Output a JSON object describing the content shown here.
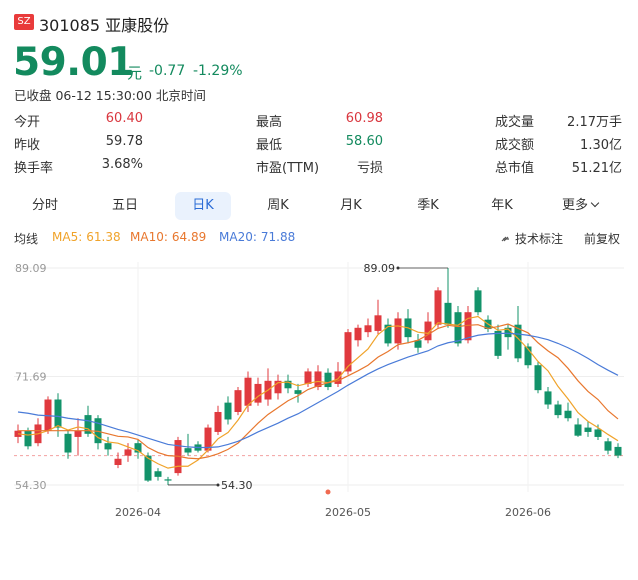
{
  "header": {
    "badge": "SZ",
    "code_name": "301085 亚康股份",
    "price": 59.01,
    "unit": "元",
    "change": "-0.77",
    "change_pct": "-1.29%",
    "status": "已收盘 06-12 15:30:00 北京时间"
  },
  "stats": [
    [
      {
        "label": "今开",
        "value": "60.40",
        "color": "#d9363e"
      },
      {
        "label": "昨收",
        "value": "59.78"
      },
      {
        "label": "换手率",
        "value": "3.68%"
      }
    ],
    [
      {
        "label": "最高",
        "value": "60.98",
        "color": "#d9363e"
      },
      {
        "label": "最低",
        "value": "58.60",
        "color": "#138a5e"
      },
      {
        "label": "市盈(TTM)",
        "value": "亏损"
      }
    ],
    [
      {
        "label": "成交量",
        "value": "2.17万手"
      },
      {
        "label": "成交额",
        "value": "1.30亿"
      },
      {
        "label": "总市值",
        "value": "51.21亿"
      }
    ]
  ],
  "tabs": [
    "分时",
    "五日",
    "日K",
    "周K",
    "月K",
    "季K",
    "年K",
    "更多"
  ],
  "selected_tab": 2,
  "legend_title": "均线",
  "tools": [
    "技术标注",
    "前复权"
  ],
  "chart_data": {
    "type": "candlestick",
    "categories": [
      null,
      null,
      null,
      null,
      null,
      null,
      null,
      null,
      null,
      null,
      null,
      null,
      "2026-04",
      null,
      null,
      null,
      null,
      null,
      null,
      null,
      null,
      null,
      null,
      null,
      null,
      null,
      null,
      null,
      null,
      null,
      null,
      null,
      null,
      "2026-05",
      null,
      null,
      null,
      null,
      null,
      null,
      null,
      null,
      null,
      null,
      null,
      null,
      null,
      null,
      null,
      null,
      null,
      "2026-06",
      null,
      null,
      null,
      null,
      null,
      null,
      null,
      null,
      null
    ],
    "open": [
      62,
      63,
      61,
      63,
      68,
      62.5,
      62,
      65.5,
      65,
      61,
      57.5,
      59,
      61,
      59,
      56.5,
      55.2,
      56.2,
      60.2,
      60.8,
      59.8,
      62.8,
      67.5,
      66,
      67,
      67.5,
      68,
      69,
      71,
      69.5,
      70.5,
      70,
      72.3,
      70.5,
      72.5,
      77.5,
      78.8,
      79,
      80,
      77,
      81,
      77.5,
      77.5,
      80,
      83.5,
      82,
      77.5,
      85.5,
      80.8,
      79,
      79.5,
      80,
      76.5,
      73.5,
      69.3,
      67.2,
      66.2,
      64,
      63.5,
      63.2,
      61.3,
      60.4
    ],
    "high": [
      64,
      63.5,
      65,
      68.5,
      69,
      63,
      65,
      67,
      65.5,
      62,
      59.5,
      61,
      61.5,
      59.5,
      57,
      55.6,
      62,
      62.5,
      61.3,
      64,
      67,
      68.5,
      70,
      72.5,
      71.5,
      73,
      72,
      72,
      70.5,
      73,
      73.5,
      73,
      74,
      79.3,
      80,
      81,
      84,
      81,
      82,
      82.5,
      78.5,
      82,
      86,
      89.09,
      83,
      83,
      86,
      81.5,
      80,
      80,
      83,
      77,
      74,
      70,
      67.8,
      67.5,
      65,
      64.5,
      64,
      61.8,
      60.98
    ],
    "low": [
      61,
      60,
      60.5,
      62.5,
      62,
      58.5,
      59,
      62,
      60,
      59,
      57,
      58,
      58.5,
      54.8,
      55,
      54.3,
      55.8,
      59,
      59.5,
      59.5,
      62.3,
      64,
      65.5,
      66,
      67,
      67,
      68,
      69,
      67.5,
      70,
      69.5,
      69.5,
      70,
      72,
      76.5,
      78,
      78.5,
      76.5,
      76,
      77,
      75.5,
      77,
      79.5,
      79.5,
      76.5,
      77,
      81.5,
      78.8,
      74.5,
      76,
      74,
      73,
      69,
      66.5,
      65,
      64.5,
      62,
      62,
      61.5,
      59.2,
      58.6
    ],
    "close": [
      63,
      60.5,
      64,
      68,
      63.5,
      59.5,
      63,
      62.5,
      61,
      60,
      58.5,
      60,
      59.5,
      55,
      55.6,
      55,
      61.5,
      59.5,
      59.8,
      63.5,
      66,
      64.8,
      69.5,
      71.5,
      70.5,
      71,
      71,
      69.8,
      68.9,
      72.5,
      72.5,
      70,
      72.5,
      78.8,
      79.5,
      79.9,
      81.5,
      77,
      81,
      78,
      76.3,
      80.5,
      85.5,
      80,
      77,
      82,
      82,
      79.3,
      75,
      78,
      74.6,
      73.5,
      69.5,
      67.2,
      65.5,
      65,
      62.2,
      62.8,
      62,
      59.8,
      59.01
    ],
    "up_color": "#e0393e",
    "down_color": "#13936a",
    "series": [
      {
        "name": "MA5:",
        "color": "#f0a32a",
        "values": [
          62.5,
          62.3,
          62.5,
          63,
          63.8,
          63.1,
          63.6,
          63.3,
          61.9,
          61.2,
          61,
          60.4,
          59.8,
          58.6,
          57.7,
          57,
          57.3,
          57.3,
          58.3,
          59.9,
          61.7,
          62.7,
          64.7,
          67.1,
          68.5,
          69.5,
          70.7,
          70.8,
          70.2,
          70.6,
          70.9,
          70.7,
          71.3,
          73.3,
          74.7,
          76.1,
          78.4,
          79.7,
          79.8,
          79.5,
          78.8,
          78.6,
          80.3,
          80.1,
          79.9,
          81,
          81.3,
          80.1,
          79.1,
          79.3,
          77.8,
          76.1,
          74.1,
          72.6,
          70.1,
          68.1,
          65.9,
          64.5,
          63.5,
          62.4,
          61.38
        ]
      },
      {
        "name": "MA10:",
        "color": "#e8772e",
        "values": [
          63,
          63,
          63,
          63,
          63,
          63,
          63,
          63,
          62.9,
          62.5,
          62.1,
          62,
          61.6,
          60.3,
          59.5,
          59,
          58.9,
          58.6,
          58.5,
          58.8,
          59.3,
          60,
          61,
          62.6,
          64.2,
          65.6,
          66.7,
          67.8,
          68.6,
          69.6,
          70.2,
          70.7,
          71,
          71.8,
          72.6,
          73.5,
          74.8,
          75.7,
          76.8,
          77.1,
          77.5,
          78.4,
          79.4,
          79.9,
          79.7,
          79.9,
          80,
          79.4,
          79.7,
          80.1,
          79.4,
          78.7,
          77.1,
          75.8,
          74.7,
          73,
          71,
          69.3,
          68,
          66.2,
          64.89
        ]
      },
      {
        "name": "MA20:",
        "color": "#4a7bd8",
        "values": [
          66,
          65.8,
          65.5,
          65.4,
          65.3,
          65,
          64.8,
          64.6,
          64.2,
          63.7,
          63.2,
          62.8,
          62.3,
          61.8,
          61.3,
          60.8,
          60.6,
          60.4,
          60.3,
          60.3,
          60.4,
          60.8,
          61.3,
          62,
          62.8,
          63.5,
          64.2,
          65,
          65.7,
          66.6,
          67.5,
          68.4,
          69.3,
          70.3,
          71.2,
          72.1,
          72.9,
          73.6,
          74.2,
          74.8,
          75.3,
          75.8,
          76.6,
          77.1,
          77.4,
          77.9,
          78.3,
          78.5,
          78.6,
          78.6,
          78.5,
          78.3,
          78,
          77.6,
          77,
          76.3,
          75.5,
          74.6,
          73.6,
          72.7,
          71.88
        ]
      }
    ],
    "ylim": [
      53.17,
      90.05
    ],
    "yticks": [
      89.09,
      71.69,
      {
        "value": 54.3,
        "label": "54.30"
      }
    ],
    "annotations": [
      {
        "value": 89.09,
        "label": "89.09",
        "index": 43
      },
      {
        "value": 54.3,
        "label": "54.30",
        "index": 15
      }
    ],
    "grid": true
  }
}
